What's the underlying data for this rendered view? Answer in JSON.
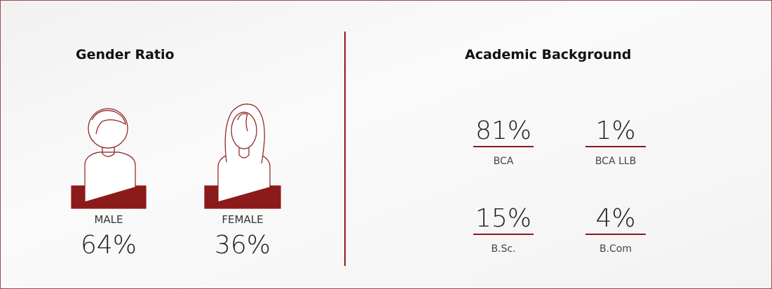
{
  "gender": {
    "title": "Gender Ratio",
    "items": [
      {
        "label": "MALE",
        "value": "64%"
      },
      {
        "label": "FEMALE",
        "value": "36%"
      }
    ]
  },
  "academic": {
    "title": "Academic Background",
    "items": [
      {
        "value": "81%",
        "label": "BCA"
      },
      {
        "value": "1%",
        "label": "BCA LLB"
      },
      {
        "value": "15%",
        "label": "B.Sc."
      },
      {
        "value": "4%",
        "label": "B.Com"
      }
    ]
  }
}
